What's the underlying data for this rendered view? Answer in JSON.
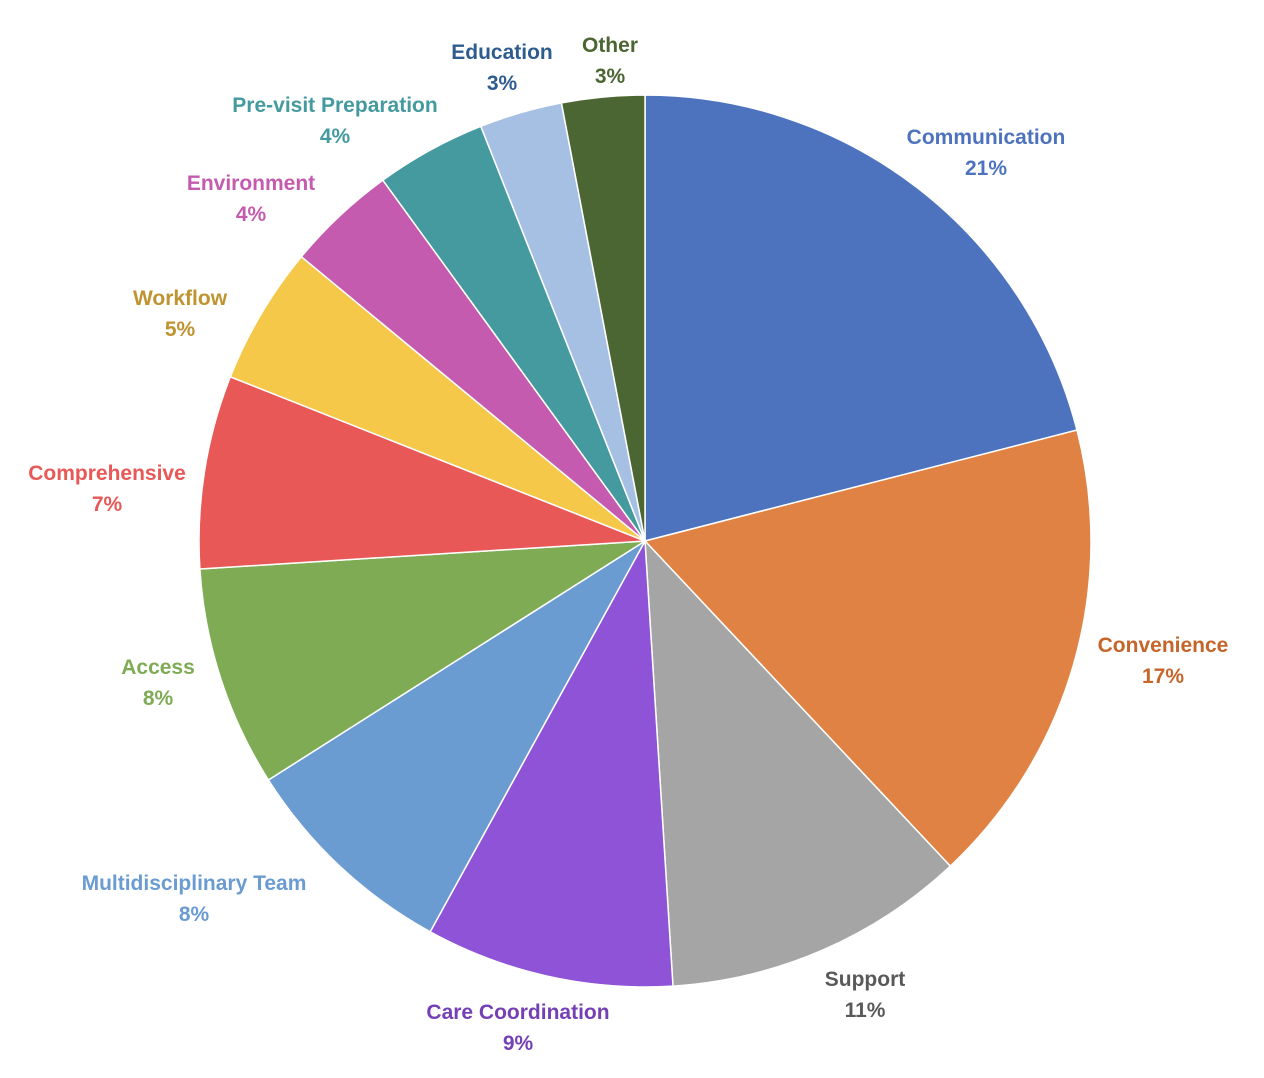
{
  "chart_data": {
    "type": "pie",
    "title": "",
    "slices": [
      {
        "label": "Communication",
        "percent_label": "21%",
        "value": 21,
        "color": "#4E73BE"
      },
      {
        "label": "Convenience",
        "percent_label": "17%",
        "value": 17,
        "color": "#E08244"
      },
      {
        "label": "Support",
        "percent_label": "11%",
        "value": 11,
        "color": "#A5A5A5"
      },
      {
        "label": "Care Coordination",
        "percent_label": "9%",
        "value": 9,
        "color": "#8E53D6"
      },
      {
        "label": "Multidisciplinary Team",
        "percent_label": "8%",
        "value": 8,
        "color": "#6A9BD1"
      },
      {
        "label": "Access",
        "percent_label": "8%",
        "value": 8,
        "color": "#7FAB55"
      },
      {
        "label": "Comprehensive",
        "percent_label": "7%",
        "value": 7,
        "color": "#E85856"
      },
      {
        "label": "Workflow",
        "percent_label": "5%",
        "value": 5,
        "color": "#F6C84A"
      },
      {
        "label": "Environment",
        "percent_label": "4%",
        "value": 4,
        "color": "#C55BAE"
      },
      {
        "label": "Pre-visit Preparation",
        "percent_label": "4%",
        "value": 4,
        "color": "#449A9E"
      },
      {
        "label": "Education",
        "percent_label": "3%",
        "value": 3,
        "color": "#A6C0E4"
      },
      {
        "label": "Other",
        "percent_label": "3%",
        "value": 3,
        "color": "#4B6633"
      }
    ],
    "label_colors": [
      "#4E73BE",
      "#C5652A",
      "#595959",
      "#7540B5",
      "#6A9BD1",
      "#7FAB55",
      "#E85856",
      "#BF9330",
      "#C55BAE",
      "#449A9E",
      "#2F5C8F",
      "#4B6633"
    ],
    "start_angle_deg": 0,
    "direction": "clockwise",
    "legend": "none"
  }
}
